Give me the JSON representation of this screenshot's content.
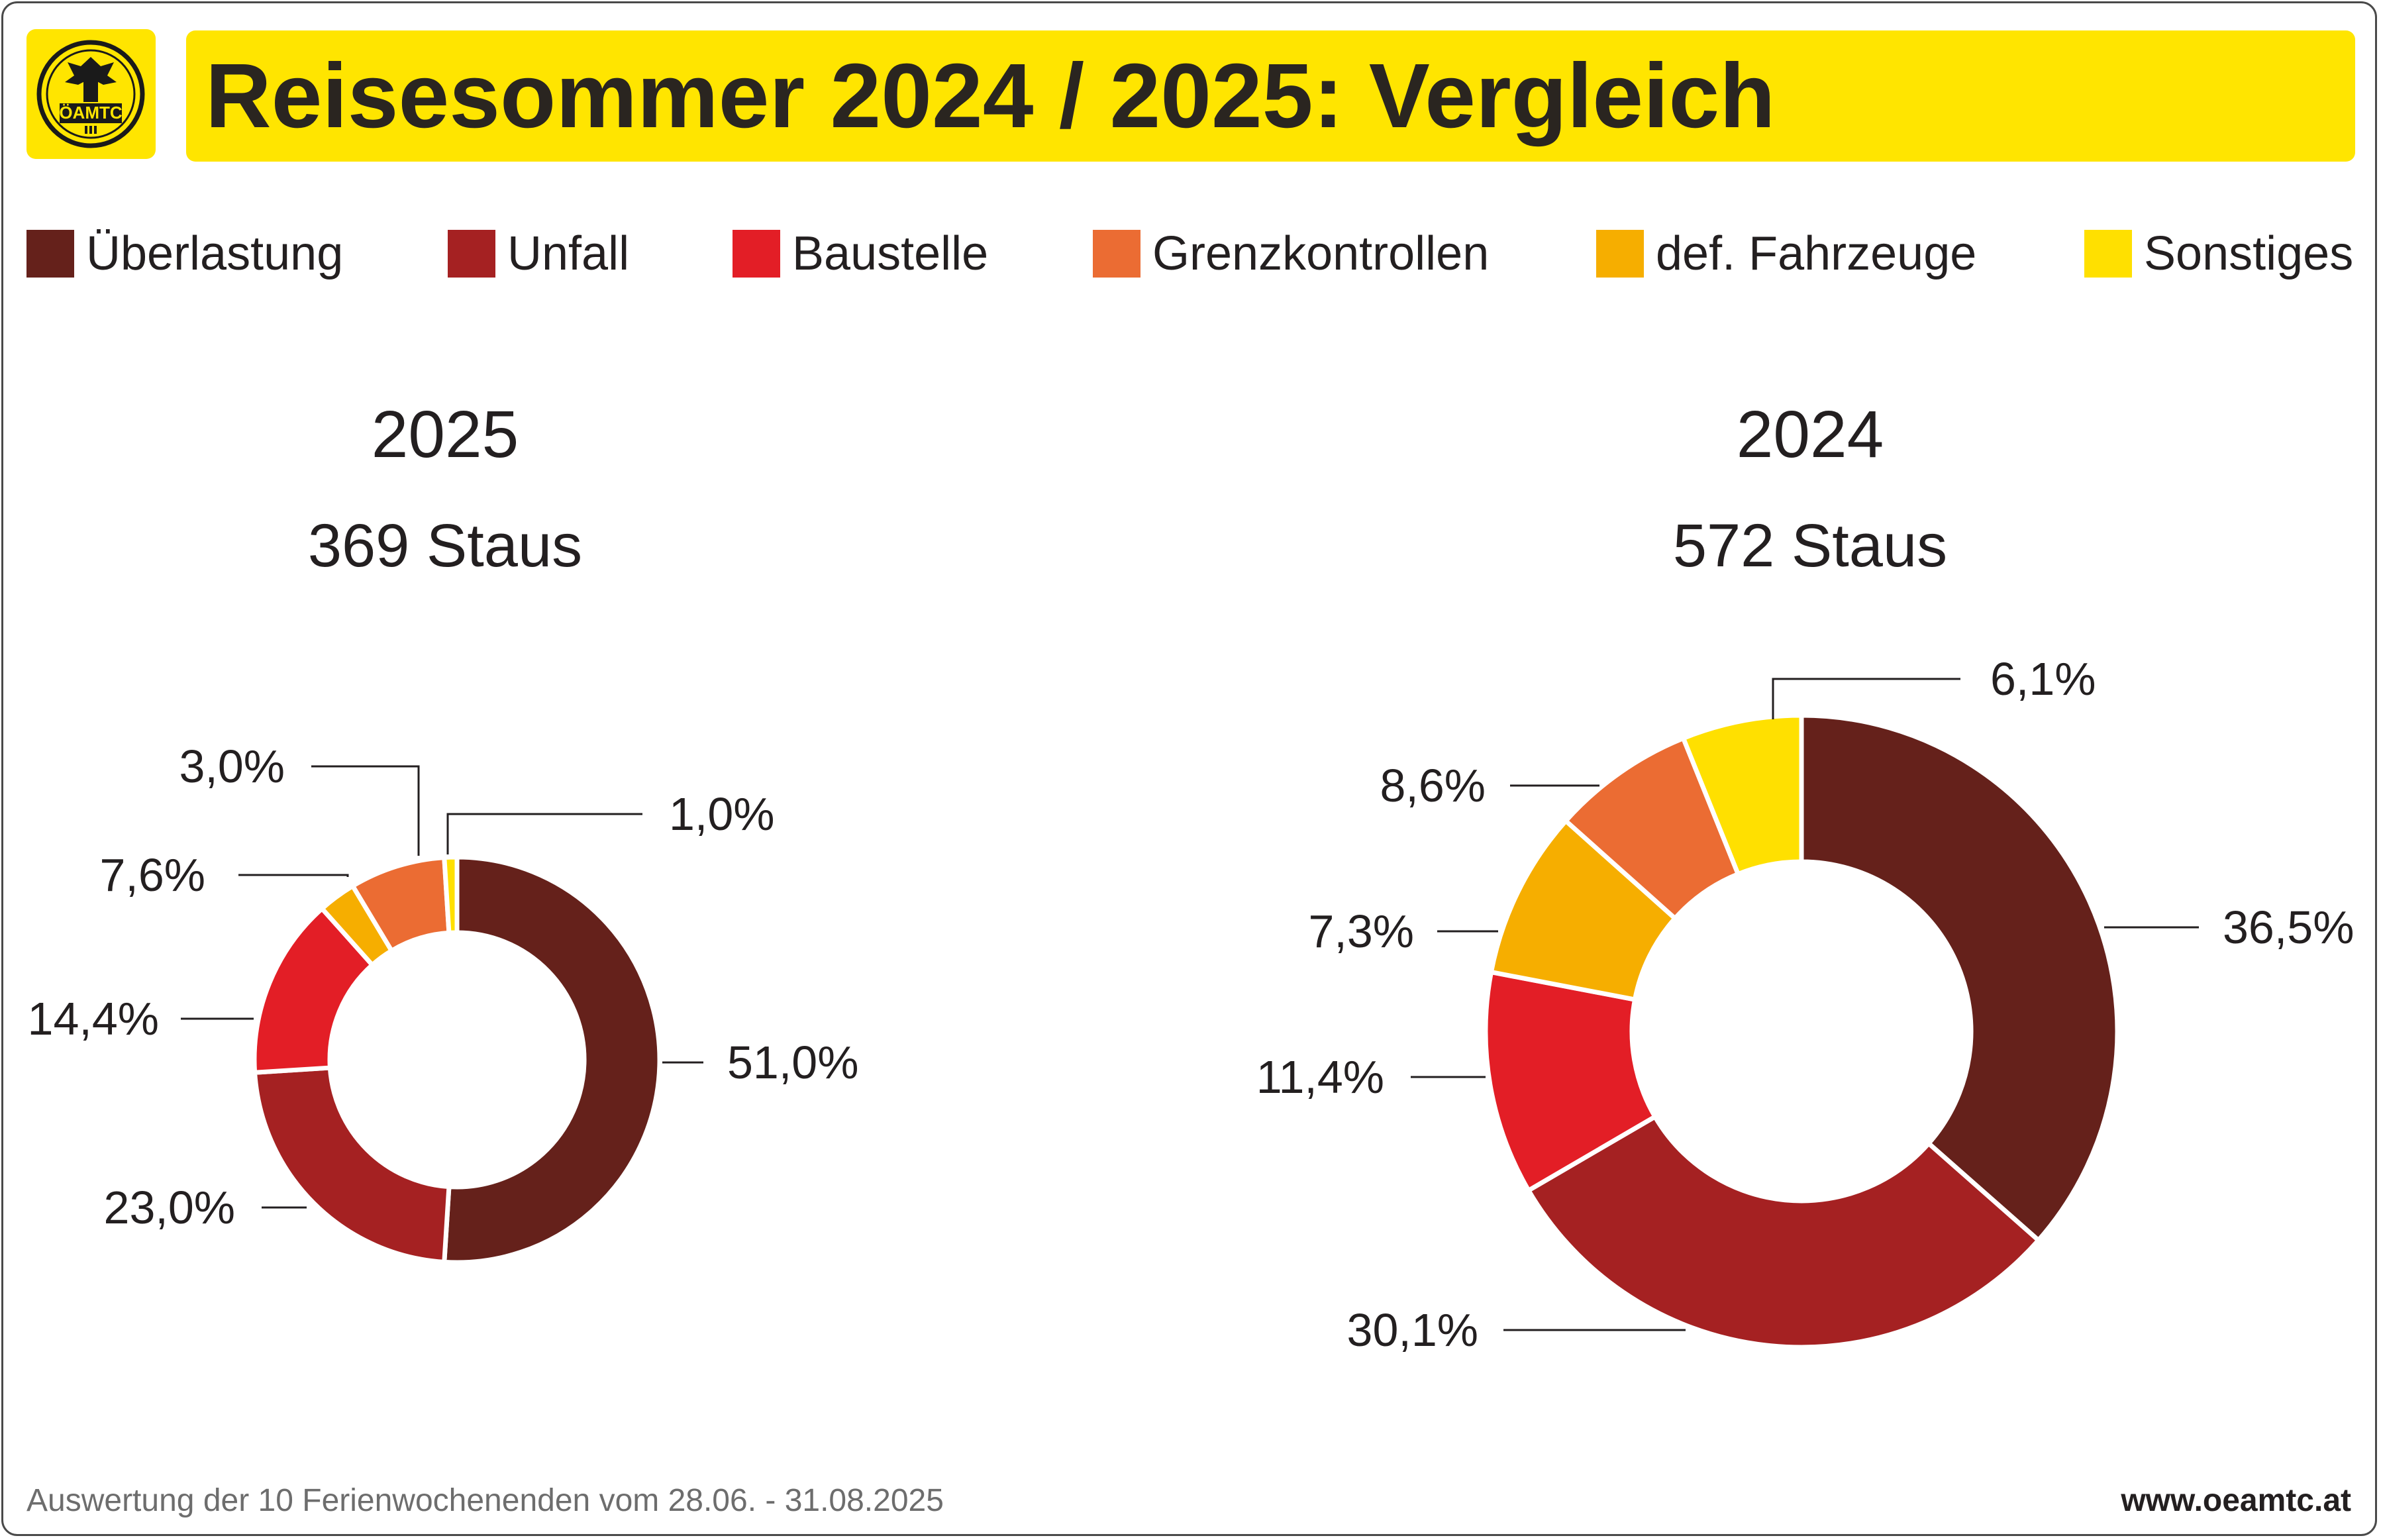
{
  "header": {
    "title": "Reisesommer 2024 / 2025: Vergleich",
    "logo_text": "ÖAMTC",
    "brand_color": "#ffe500"
  },
  "legend": [
    {
      "label": "Überlastung",
      "color": "#65211b"
    },
    {
      "label": "Unfall",
      "color": "#a52122"
    },
    {
      "label": "Baustelle",
      "color": "#e31e26"
    },
    {
      "label": "Grenzkontrollen",
      "color": "#eb6c33"
    },
    {
      "label": "def. Fahrzeuge",
      "color": "#f6ae00"
    },
    {
      "label": "Sonstiges",
      "color": "#ffe000"
    }
  ],
  "chart_data": [
    {
      "type": "pie",
      "variant": "donut",
      "title": "2025",
      "subtitle": "369 Staus",
      "categories": [
        "Überlastung",
        "Unfall",
        "Baustelle",
        "Grenzkontrollen",
        "def. Fahrzeuge",
        "Sonstiges"
      ],
      "values": [
        51.0,
        23.0,
        14.4,
        7.6,
        3.0,
        1.0
      ],
      "labels": [
        "51,0%",
        "23,0%",
        "14,4%",
        "7,6%",
        "3,0%",
        "1,0%"
      ]
    },
    {
      "type": "pie",
      "variant": "donut",
      "title": "2024",
      "subtitle": "572 Staus",
      "categories": [
        "Überlastung",
        "Unfall",
        "Baustelle",
        "Grenzkontrollen",
        "def. Fahrzeuge",
        "Sonstiges"
      ],
      "values": [
        36.5,
        30.1,
        11.4,
        7.3,
        8.6,
        6.1
      ],
      "labels": [
        "36,5%",
        "30,1%",
        "11,4%",
        "7,3%",
        "8,6%",
        "6,1%"
      ]
    }
  ],
  "footer": {
    "note": "Auswertung der 10 Ferienwochenenden vom 28.06. - 31.08.2025",
    "website": "www.oeamtc.at"
  }
}
